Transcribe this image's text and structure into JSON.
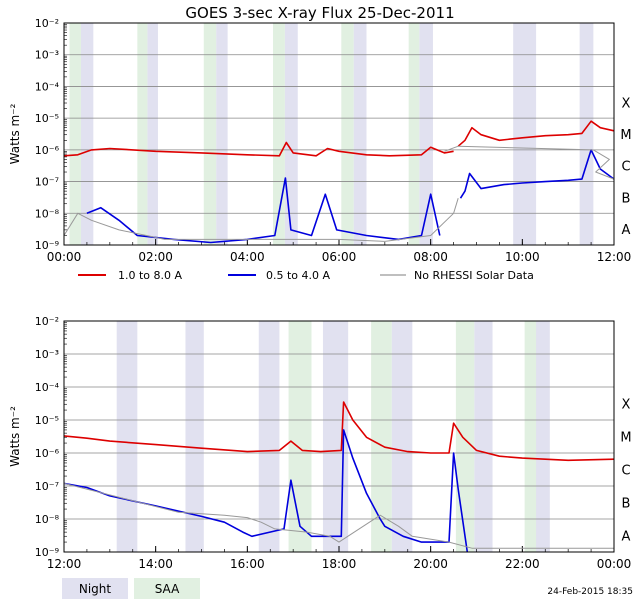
{
  "title": "GOES 3-sec X-ray Flux   25-Dec-2011",
  "footer_date": "24-Feb-2015 18:35",
  "legend": {
    "long_label": "1.0 to 8.0 A",
    "short_label": "0.5 to 4.0 A",
    "gap_label": "No RHESSI Solar Data"
  },
  "night_saa_legend": {
    "night_label": "Night",
    "saa_label": "SAA"
  },
  "colors": {
    "long": "#dd0000",
    "short": "#0000dd",
    "gap": "#999999",
    "night": "#e1e1f0",
    "saa": "#e1f0e1",
    "grid": "#888888"
  },
  "chart_data": [
    {
      "type": "line",
      "y_scale": "log",
      "ylabel": "Watts m⁻²",
      "ylim": [
        1e-09,
        0.01
      ],
      "y_ticks": [
        "10⁻⁹",
        "10⁻⁸",
        "10⁻⁷",
        "10⁻⁶",
        "10⁻⁵",
        "10⁻⁴",
        "10⁻³",
        "10⁻²"
      ],
      "flare_classes": [
        "A",
        "B",
        "C",
        "M",
        "X"
      ],
      "xlim_hours": [
        0,
        12
      ],
      "x_ticks": [
        "00:00",
        "02:00",
        "04:00",
        "06:00",
        "08:00",
        "10:00",
        "12:00"
      ],
      "night_bands_hours": [
        [
          0.37,
          0.64
        ],
        [
          1.82,
          2.05
        ],
        [
          3.32,
          3.57
        ],
        [
          4.82,
          5.1
        ],
        [
          6.32,
          6.6
        ],
        [
          7.75,
          8.05
        ],
        [
          9.8,
          10.3
        ],
        [
          11.25,
          11.55
        ]
      ],
      "saa_bands_hours": [
        [
          0.12,
          0.37
        ],
        [
          1.6,
          1.82
        ],
        [
          3.05,
          3.32
        ],
        [
          4.56,
          4.82
        ],
        [
          6.05,
          6.32
        ],
        [
          7.52,
          7.75
        ]
      ],
      "series": [
        {
          "key": "long",
          "points": [
            [
              0,
              6.5e-07
            ],
            [
              0.3,
              7e-07
            ],
            [
              0.6,
              1e-06
            ],
            [
              1.0,
              1.1e-06
            ],
            [
              2.0,
              9e-07
            ],
            [
              3.0,
              8e-07
            ],
            [
              4.0,
              7e-07
            ],
            [
              4.7,
              6.5e-07
            ],
            [
              4.85,
              1.7e-06
            ],
            [
              5.0,
              8e-07
            ],
            [
              5.5,
              6.5e-07
            ],
            [
              5.75,
              1.1e-06
            ],
            [
              6.0,
              9e-07
            ],
            [
              6.6,
              7e-07
            ],
            [
              7.1,
              6.5e-07
            ],
            [
              7.8,
              7e-07
            ],
            [
              8.0,
              1.2e-06
            ],
            [
              8.3,
              8e-07
            ],
            [
              8.5,
              9e-07
            ]
          ],
          "points_b": [
            [
              8.6,
              1.3e-06
            ],
            [
              8.75,
              2e-06
            ],
            [
              8.9,
              5e-06
            ],
            [
              9.1,
              3e-06
            ],
            [
              9.5,
              2e-06
            ],
            [
              10.0,
              2.4e-06
            ],
            [
              10.5,
              2.8e-06
            ],
            [
              11.0,
              3e-06
            ],
            [
              11.3,
              3.3e-06
            ],
            [
              11.5,
              8e-06
            ],
            [
              11.7,
              5e-06
            ],
            [
              12.0,
              4e-06
            ]
          ]
        },
        {
          "key": "short",
          "points": [
            [
              0.5,
              1e-08
            ],
            [
              0.8,
              1.5e-08
            ],
            [
              1.2,
              6e-09
            ],
            [
              1.6,
              2e-09
            ],
            [
              2.4,
              1.5e-09
            ],
            [
              3.2,
              1.2e-09
            ],
            [
              4.0,
              1.5e-09
            ],
            [
              4.6,
              2e-09
            ],
            [
              4.83,
              1.3e-07
            ],
            [
              4.95,
              3e-09
            ],
            [
              5.4,
              2e-09
            ],
            [
              5.7,
              4e-08
            ],
            [
              5.95,
              3e-09
            ],
            [
              6.6,
              2e-09
            ],
            [
              7.3,
              1.5e-09
            ],
            [
              7.8,
              2e-09
            ],
            [
              8.0,
              4e-08
            ],
            [
              8.2,
              2e-09
            ]
          ],
          "points_b": [
            [
              8.65,
              3e-08
            ],
            [
              8.75,
              5e-08
            ],
            [
              8.85,
              1.8e-07
            ],
            [
              9.1,
              6e-08
            ],
            [
              9.6,
              8e-08
            ],
            [
              10.0,
              9e-08
            ],
            [
              10.5,
              1e-07
            ],
            [
              11.0,
              1.1e-07
            ],
            [
              11.3,
              1.2e-07
            ],
            [
              11.5,
              1e-06
            ],
            [
              11.7,
              2.5e-07
            ],
            [
              12.0,
              1.2e-07
            ]
          ]
        },
        {
          "key": "gap",
          "points": [
            [
              0.0,
              2e-09
            ],
            [
              0.3,
              1e-08
            ],
            [
              0.6,
              6e-09
            ],
            [
              1.2,
              3e-09
            ],
            [
              1.8,
              2e-09
            ],
            [
              2.2,
              1.5e-09
            ],
            [
              3.0,
              1.5e-09
            ],
            [
              4.0,
              1.5e-09
            ],
            [
              5.0,
              1.5e-09
            ],
            [
              6.0,
              1.5e-09
            ],
            [
              7.0,
              1.3e-09
            ],
            [
              8.0,
              2e-09
            ],
            [
              8.5,
              1e-08
            ],
            [
              8.6,
              3e-08
            ]
          ],
          "points_b": [
            [
              8.3,
              9e-07
            ],
            [
              8.6,
              1.3e-06
            ],
            [
              11.55,
              1e-06
            ],
            [
              11.9,
              5e-07
            ],
            [
              11.6,
              2e-07
            ],
            [
              12.0,
              1.2e-07
            ]
          ]
        }
      ]
    },
    {
      "type": "line",
      "y_scale": "log",
      "ylabel": "Watts m⁻²",
      "ylim": [
        1e-09,
        0.01
      ],
      "y_ticks": [
        "10⁻⁹",
        "10⁻⁸",
        "10⁻⁷",
        "10⁻⁶",
        "10⁻⁵",
        "10⁻⁴",
        "10⁻³",
        "10⁻²"
      ],
      "flare_classes": [
        "A",
        "B",
        "C",
        "M",
        "X"
      ],
      "xlim_hours": [
        12,
        24
      ],
      "x_ticks": [
        "12:00",
        "14:00",
        "16:00",
        "18:00",
        "20:00",
        "22:00",
        "00:00"
      ],
      "night_bands_hours": [
        [
          13.15,
          13.6
        ],
        [
          14.65,
          15.05
        ],
        [
          16.25,
          16.7
        ],
        [
          17.65,
          18.2
        ],
        [
          19.15,
          19.6
        ],
        [
          20.95,
          21.35
        ],
        [
          22.15,
          22.6
        ]
      ],
      "saa_bands_hours": [
        [
          16.9,
          17.4
        ],
        [
          18.7,
          19.15
        ],
        [
          20.55,
          20.95
        ],
        [
          22.05,
          22.3
        ]
      ],
      "series": [
        {
          "key": "long",
          "points": [
            [
              12,
              3.3e-06
            ],
            [
              12.5,
              2.8e-06
            ],
            [
              13.0,
              2.3e-06
            ],
            [
              14.0,
              1.8e-06
            ],
            [
              15.0,
              1.4e-06
            ],
            [
              16.0,
              1.1e-06
            ],
            [
              16.7,
              1.2e-06
            ],
            [
              16.95,
              2.3e-06
            ],
            [
              17.2,
              1.2e-06
            ],
            [
              17.6,
              1.1e-06
            ],
            [
              18.05,
              1.2e-06
            ],
            [
              18.1,
              3.5e-05
            ],
            [
              18.3,
              1e-05
            ],
            [
              18.6,
              3e-06
            ],
            [
              19.0,
              1.5e-06
            ],
            [
              19.5,
              1.1e-06
            ],
            [
              20.0,
              1e-06
            ],
            [
              20.4,
              1e-06
            ],
            [
              20.5,
              8e-06
            ],
            [
              20.7,
              3e-06
            ],
            [
              21.0,
              1.2e-06
            ],
            [
              21.5,
              8e-07
            ],
            [
              22.0,
              7e-07
            ],
            [
              23.0,
              6e-07
            ],
            [
              24.0,
              6.5e-07
            ]
          ]
        },
        {
          "key": "short",
          "points": [
            [
              12,
              1.2e-07
            ],
            [
              12.5,
              9e-08
            ],
            [
              13.0,
              5e-08
            ],
            [
              14.0,
              2.5e-08
            ],
            [
              15.0,
              1.2e-08
            ],
            [
              15.5,
              8e-09
            ],
            [
              15.9,
              4e-09
            ],
            [
              16.1,
              3e-09
            ],
            [
              16.8,
              5e-09
            ],
            [
              16.95,
              1.5e-07
            ],
            [
              17.15,
              6e-09
            ],
            [
              17.4,
              3e-09
            ],
            [
              18.05,
              3e-09
            ],
            [
              18.1,
              5e-06
            ],
            [
              18.3,
              7e-07
            ],
            [
              18.6,
              6e-08
            ],
            [
              18.9,
              1e-08
            ],
            [
              19.0,
              6e-09
            ],
            [
              19.4,
              3e-09
            ],
            [
              19.8,
              2e-09
            ],
            [
              20.3,
              2e-09
            ],
            [
              20.4,
              2e-09
            ],
            [
              20.5,
              1e-06
            ],
            [
              20.6,
              8e-08
            ],
            [
              20.8,
              1e-09
            ]
          ]
        },
        {
          "key": "gap",
          "points": [
            [
              12.0,
              1.2e-07
            ],
            [
              14.5,
              1.6e-08
            ],
            [
              15.5,
              1.3e-08
            ],
            [
              16.0,
              1.1e-08
            ],
            [
              16.3,
              8e-09
            ],
            [
              16.6,
              5e-09
            ],
            [
              17.3,
              4e-09
            ],
            [
              17.8,
              3e-09
            ],
            [
              18.0,
              2e-09
            ],
            [
              18.9,
              1.3e-08
            ],
            [
              19.3,
              6e-09
            ],
            [
              19.6,
              3e-09
            ],
            [
              20.4,
              2e-09
            ],
            [
              20.9,
              1.3e-09
            ],
            [
              21.6,
              1.3e-09
            ],
            [
              22.5,
              1.3e-09
            ],
            [
              23.3,
              1.3e-09
            ],
            [
              24.0,
              1.3e-09
            ]
          ]
        }
      ]
    }
  ]
}
